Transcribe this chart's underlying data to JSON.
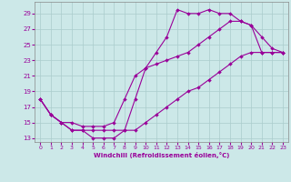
{
  "xlabel": "Windchill (Refroidissement éolien,°C)",
  "bg_color": "#cce8e8",
  "grid_color": "#aacccc",
  "line_color": "#990099",
  "xlim": [
    -0.5,
    23.5
  ],
  "ylim": [
    12.5,
    30.5
  ],
  "xticks": [
    0,
    1,
    2,
    3,
    4,
    5,
    6,
    7,
    8,
    9,
    10,
    11,
    12,
    13,
    14,
    15,
    16,
    17,
    18,
    19,
    20,
    21,
    22,
    23
  ],
  "yticks": [
    13,
    15,
    17,
    19,
    21,
    23,
    25,
    27,
    29
  ],
  "line1_x": [
    0,
    1,
    2,
    3,
    4,
    5,
    6,
    7,
    8,
    9,
    10,
    11,
    12,
    13,
    14,
    15,
    16,
    17,
    18,
    19,
    20,
    21,
    22,
    23
  ],
  "line1_y": [
    18,
    16,
    15,
    14,
    14,
    13,
    13,
    13,
    14,
    18,
    22,
    24,
    26,
    29.5,
    29,
    29,
    29.5,
    29,
    29,
    28,
    27.5,
    24,
    24,
    24
  ],
  "line2_x": [
    0,
    1,
    2,
    3,
    4,
    5,
    6,
    7,
    8,
    9,
    10,
    11,
    12,
    13,
    14,
    15,
    16,
    17,
    18,
    19,
    20,
    21,
    22,
    23
  ],
  "line2_y": [
    18,
    16,
    15,
    14,
    14,
    14,
    14,
    14,
    14,
    14,
    15,
    16,
    17,
    18,
    19,
    19.5,
    20.5,
    21.5,
    22.5,
    23.5,
    24,
    24,
    24,
    24
  ],
  "line3_x": [
    0,
    1,
    2,
    3,
    4,
    5,
    6,
    7,
    8,
    9,
    10,
    11,
    12,
    13,
    14,
    15,
    16,
    17,
    18,
    19,
    20,
    21,
    22,
    23
  ],
  "line3_y": [
    18,
    16,
    15,
    15,
    14.5,
    14.5,
    14.5,
    15,
    18,
    21,
    22,
    22.5,
    23,
    23.5,
    24,
    25,
    26,
    27,
    28,
    28,
    27.5,
    26,
    24.5,
    24
  ]
}
